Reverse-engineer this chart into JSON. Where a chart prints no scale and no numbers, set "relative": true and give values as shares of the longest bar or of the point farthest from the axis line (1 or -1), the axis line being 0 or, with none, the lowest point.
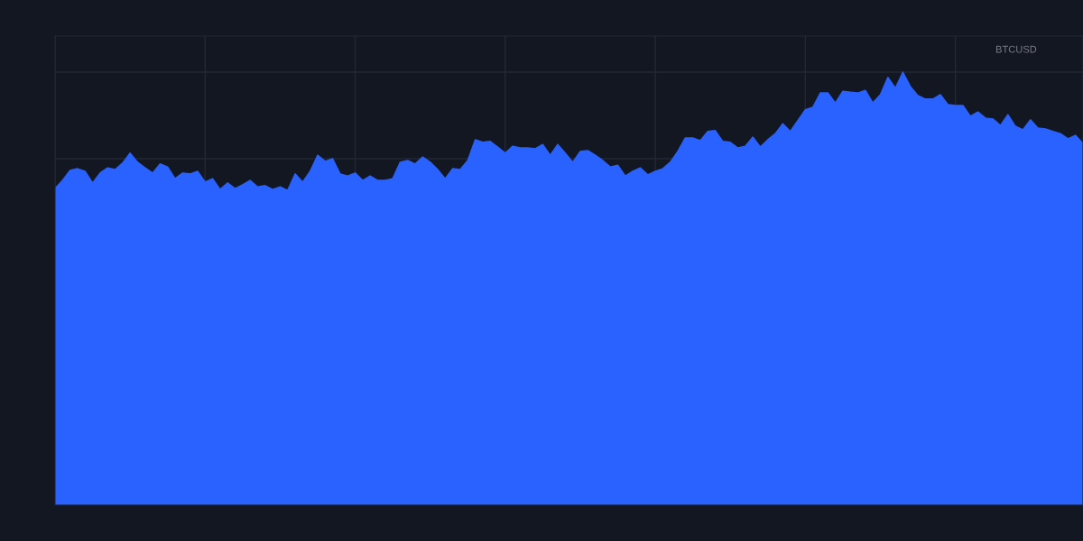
{
  "chart_data": {
    "type": "area",
    "relative": true,
    "grid": true,
    "legend": false,
    "annotations": [
      "BTCUSD"
    ],
    "categories": [
      null,
      null,
      null,
      null,
      null,
      null,
      null,
      null,
      null,
      null,
      null,
      null,
      null,
      null,
      null,
      null,
      null,
      null,
      null,
      null,
      null,
      null,
      null,
      null,
      null,
      null,
      null,
      null,
      null,
      null,
      null,
      null,
      null,
      null,
      null,
      null,
      null,
      null,
      null,
      null,
      null,
      null,
      null,
      null,
      null,
      null,
      null,
      null,
      null,
      null,
      null,
      null,
      null,
      null,
      null,
      null,
      null,
      null,
      null,
      null,
      null,
      null,
      null,
      null,
      null,
      null,
      null,
      null,
      null,
      null,
      null,
      null,
      null,
      null,
      null,
      null,
      null,
      null,
      null,
      null,
      null,
      null,
      null,
      null,
      null,
      null,
      null,
      null,
      null,
      null,
      null,
      null,
      null,
      null,
      null,
      null,
      null,
      null,
      null,
      null,
      null,
      null,
      null,
      null,
      null,
      null,
      null,
      null,
      null,
      null,
      null,
      null,
      null,
      null,
      null,
      null,
      null,
      null,
      null,
      null,
      null,
      null,
      null,
      null,
      null,
      null,
      null,
      null,
      null,
      null,
      null,
      null,
      null,
      null,
      null,
      null,
      null,
      null
    ],
    "series": [
      {
        "color": "#2962ff",
        "values": [
          0.731,
          0.75,
          0.773,
          0.777,
          0.771,
          0.744,
          0.767,
          0.779,
          0.775,
          0.79,
          0.813,
          0.792,
          0.779,
          0.767,
          0.788,
          0.781,
          0.754,
          0.767,
          0.765,
          0.771,
          0.746,
          0.754,
          0.729,
          0.744,
          0.731,
          0.74,
          0.75,
          0.735,
          0.738,
          0.729,
          0.735,
          0.727,
          0.765,
          0.746,
          0.771,
          0.808,
          0.794,
          0.8,
          0.765,
          0.76,
          0.767,
          0.75,
          0.76,
          0.75,
          0.75,
          0.754,
          0.792,
          0.796,
          0.788,
          0.804,
          0.792,
          0.775,
          0.754,
          0.777,
          0.775,
          0.796,
          0.844,
          0.838,
          0.84,
          0.827,
          0.813,
          0.829,
          0.825,
          0.825,
          0.823,
          0.833,
          0.808,
          0.833,
          0.813,
          0.792,
          0.817,
          0.819,
          0.808,
          0.796,
          0.781,
          0.785,
          0.76,
          0.771,
          0.779,
          0.763,
          0.771,
          0.777,
          0.792,
          0.817,
          0.848,
          0.848,
          0.842,
          0.863,
          0.865,
          0.84,
          0.838,
          0.825,
          0.829,
          0.85,
          0.827,
          0.844,
          0.858,
          0.881,
          0.863,
          0.888,
          0.913,
          0.919,
          0.952,
          0.952,
          0.929,
          0.956,
          0.954,
          0.952,
          0.958,
          0.929,
          0.948,
          0.988,
          0.963,
          1,
          0.967,
          0.946,
          0.938,
          0.938,
          0.948,
          0.925,
          0.923,
          0.923,
          0.898,
          0.908,
          0.894,
          0.892,
          0.877,
          0.902,
          0.875,
          0.867,
          0.89,
          0.871,
          0.869,
          0.863,
          0.858,
          0.846,
          0.854,
          0.835
        ]
      }
    ]
  }
}
